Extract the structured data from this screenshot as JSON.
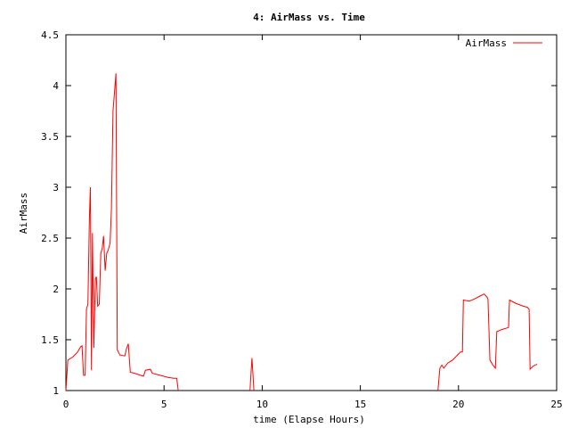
{
  "chart_data": {
    "type": "line",
    "title": "4: AirMass vs. Time",
    "xlabel": "time (Elapse Hours)",
    "ylabel": "AirMass",
    "xlim": [
      0,
      25
    ],
    "ylim": [
      1,
      4.5
    ],
    "xticks": [
      0,
      5,
      10,
      15,
      20,
      25
    ],
    "xtick_labels": [
      "0",
      "5",
      "10",
      "15",
      "20",
      "25"
    ],
    "yticks": [
      1,
      1.5,
      2,
      2.5,
      3,
      3.5,
      4,
      4.5
    ],
    "ytick_labels": [
      "1",
      "1.5",
      "2",
      "2.5",
      "3",
      "3.5",
      "4",
      "4.5"
    ],
    "grid": false,
    "legend_position": "top-right",
    "series": [
      {
        "name": "AirMass",
        "color": "#ff0000",
        "segments": [
          [
            [
              0.0,
              1.0
            ],
            [
              0.1,
              1.3
            ],
            [
              0.35,
              1.33
            ],
            [
              0.6,
              1.38
            ],
            [
              0.75,
              1.43
            ],
            [
              0.82,
              1.44
            ],
            [
              0.9,
              1.15
            ],
            [
              0.98,
              1.15
            ],
            [
              1.05,
              1.8
            ],
            [
              1.12,
              1.85
            ],
            [
              1.2,
              2.7
            ],
            [
              1.25,
              3.0
            ],
            [
              1.3,
              1.2
            ],
            [
              1.35,
              2.55
            ],
            [
              1.42,
              1.42
            ],
            [
              1.5,
              2.1
            ],
            [
              1.55,
              2.12
            ],
            [
              1.62,
              1.83
            ],
            [
              1.7,
              1.85
            ],
            [
              1.78,
              2.35
            ],
            [
              1.85,
              2.4
            ],
            [
              1.92,
              2.52
            ],
            [
              2.0,
              2.18
            ],
            [
              2.08,
              2.35
            ],
            [
              2.15,
              2.38
            ],
            [
              2.25,
              2.45
            ],
            [
              2.32,
              2.78
            ],
            [
              2.4,
              3.75
            ],
            [
              2.48,
              3.95
            ],
            [
              2.55,
              4.12
            ],
            [
              2.62,
              1.4
            ],
            [
              2.75,
              1.35
            ],
            [
              3.0,
              1.34
            ],
            [
              3.1,
              1.42
            ],
            [
              3.18,
              1.46
            ],
            [
              3.28,
              1.18
            ],
            [
              3.5,
              1.17
            ],
            [
              3.8,
              1.15
            ],
            [
              3.95,
              1.14
            ],
            [
              4.05,
              1.2
            ],
            [
              4.3,
              1.21
            ],
            [
              4.4,
              1.17
            ],
            [
              4.8,
              1.15
            ],
            [
              5.2,
              1.13
            ],
            [
              5.5,
              1.12
            ],
            [
              5.65,
              1.12
            ],
            [
              5.72,
              1.0
            ]
          ],
          [
            [
              9.38,
              1.0
            ],
            [
              9.48,
              1.32
            ],
            [
              9.58,
              1.0
            ]
          ],
          [
            [
              18.95,
              1.0
            ],
            [
              19.05,
              1.22
            ],
            [
              19.15,
              1.25
            ],
            [
              19.25,
              1.22
            ],
            [
              19.45,
              1.27
            ],
            [
              19.7,
              1.3
            ],
            [
              19.95,
              1.35
            ],
            [
              20.1,
              1.38
            ],
            [
              20.2,
              1.38
            ],
            [
              20.25,
              1.89
            ],
            [
              20.55,
              1.88
            ],
            [
              20.8,
              1.9
            ],
            [
              21.1,
              1.93
            ],
            [
              21.3,
              1.95
            ],
            [
              21.45,
              1.92
            ],
            [
              21.5,
              1.9
            ],
            [
              21.6,
              1.3
            ],
            [
              21.75,
              1.25
            ],
            [
              21.88,
              1.22
            ],
            [
              21.95,
              1.58
            ],
            [
              22.2,
              1.6
            ],
            [
              22.55,
              1.62
            ],
            [
              22.6,
              1.89
            ],
            [
              22.9,
              1.86
            ],
            [
              23.3,
              1.83
            ],
            [
              23.5,
              1.82
            ],
            [
              23.6,
              1.8
            ],
            [
              23.65,
              1.21
            ],
            [
              23.8,
              1.24
            ],
            [
              24.0,
              1.26
            ]
          ]
        ]
      }
    ]
  }
}
